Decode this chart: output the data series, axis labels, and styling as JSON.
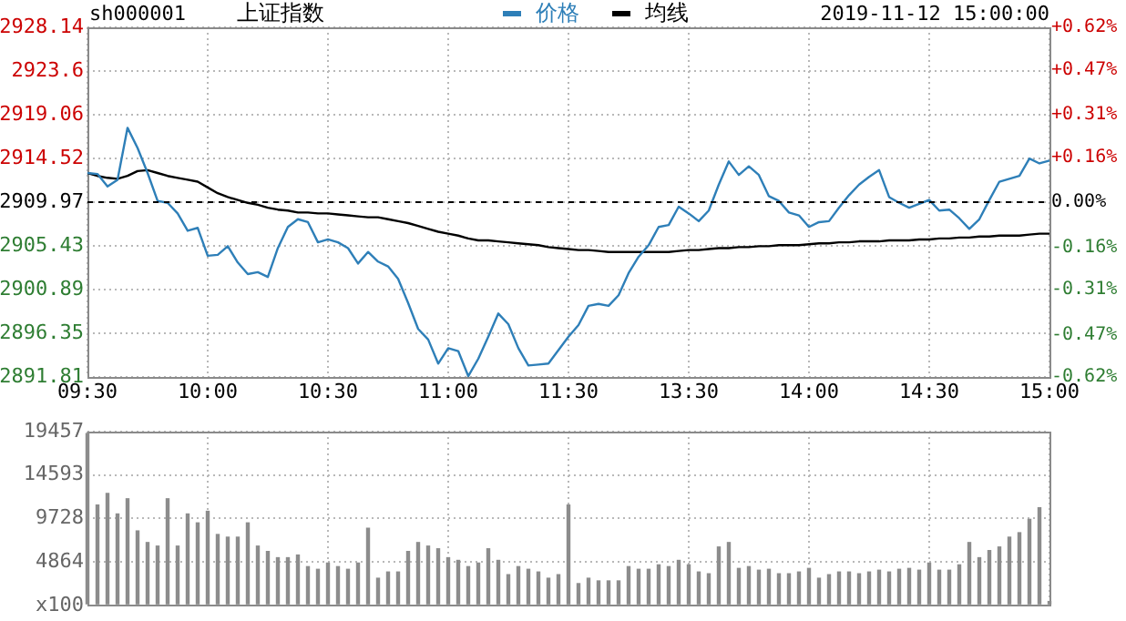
{
  "chart_data": [
    {
      "type": "line",
      "title": "上证指数",
      "subtitle": "sh000001",
      "annotations": [
        "2019-11-12 15:00:00"
      ],
      "categories": [
        "09:30",
        null,
        null,
        null,
        null,
        null,
        null,
        null,
        null,
        null,
        null,
        null,
        "10:00",
        null,
        null,
        null,
        null,
        null,
        null,
        null,
        null,
        null,
        null,
        null,
        "10:30",
        null,
        null,
        null,
        null,
        null,
        null,
        null,
        null,
        null,
        null,
        null,
        "11:00",
        null,
        null,
        null,
        null,
        null,
        null,
        null,
        null,
        null,
        null,
        null,
        "11:30",
        null,
        null,
        null,
        null,
        null,
        null,
        null,
        null,
        null,
        null,
        null,
        "13:30",
        null,
        null,
        null,
        null,
        null,
        null,
        null,
        null,
        null,
        null,
        null,
        "14:00",
        null,
        null,
        null,
        null,
        null,
        null,
        null,
        null,
        null,
        null,
        null,
        "14:30",
        null,
        null,
        null,
        null,
        null,
        null,
        null,
        null,
        null,
        null,
        null,
        "15:00"
      ],
      "series": [
        {
          "name": "价格",
          "color": "#2e7fb8",
          "values": [
            2913.0,
            2912.9,
            2911.6,
            2912.3,
            2917.7,
            2915.6,
            2913.0,
            2910.1,
            2909.9,
            2908.8,
            2907.0,
            2907.3,
            2904.4,
            2904.5,
            2905.4,
            2903.7,
            2902.5,
            2902.7,
            2902.2,
            2905.2,
            2907.4,
            2908.2,
            2907.9,
            2905.8,
            2906.1,
            2905.8,
            2905.2,
            2903.6,
            2904.8,
            2903.8,
            2903.3,
            2902.0,
            2899.5,
            2896.8,
            2895.7,
            2893.2,
            2894.8,
            2894.5,
            2891.9,
            2893.7,
            2896.0,
            2898.4,
            2897.3,
            2894.8,
            2893.0,
            2893.1,
            2893.2,
            2894.6,
            2896.0,
            2897.2,
            2899.2,
            2899.4,
            2899.2,
            2900.3,
            2902.6,
            2904.3,
            2905.5,
            2907.4,
            2907.6,
            2909.5,
            2908.8,
            2908.0,
            2909.1,
            2911.8,
            2914.2,
            2912.8,
            2913.7,
            2912.8,
            2910.6,
            2910.1,
            2908.9,
            2908.6,
            2907.4,
            2907.9,
            2908.0,
            2909.4,
            2910.7,
            2911.8,
            2912.6,
            2913.3,
            2910.5,
            2909.9,
            2909.4,
            2909.8,
            2910.2,
            2909.1,
            2909.2,
            2908.3,
            2907.2,
            2908.2,
            2910.2,
            2912.1,
            2912.4,
            2912.7,
            2914.5,
            2914.0,
            2914.3
          ]
        },
        {
          "name": "均线",
          "color": "#000000",
          "values": [
            2913.0,
            2912.7,
            2912.5,
            2912.4,
            2912.7,
            2913.2,
            2913.3,
            2913.0,
            2912.7,
            2912.5,
            2912.3,
            2912.1,
            2911.5,
            2910.9,
            2910.5,
            2910.2,
            2909.9,
            2909.7,
            2909.4,
            2909.2,
            2909.1,
            2908.9,
            2908.9,
            2908.8,
            2908.8,
            2908.7,
            2908.6,
            2908.5,
            2908.4,
            2908.4,
            2908.2,
            2908.0,
            2907.8,
            2907.5,
            2907.2,
            2906.9,
            2906.7,
            2906.5,
            2906.2,
            2906.0,
            2906.0,
            2905.9,
            2905.8,
            2905.7,
            2905.6,
            2905.5,
            2905.3,
            2905.2,
            2905.1,
            2905.0,
            2905.0,
            2904.9,
            2904.8,
            2904.8,
            2904.8,
            2904.8,
            2904.8,
            2904.8,
            2904.8,
            2904.9,
            2905.0,
            2905.0,
            2905.1,
            2905.2,
            2905.2,
            2905.3,
            2905.3,
            2905.4,
            2905.4,
            2905.5,
            2905.5,
            2905.5,
            2905.6,
            2905.7,
            2905.7,
            2905.8,
            2905.8,
            2905.9,
            2905.9,
            2905.9,
            2906.0,
            2906.0,
            2906.0,
            2906.1,
            2906.1,
            2906.2,
            2906.2,
            2906.3,
            2906.3,
            2906.4,
            2906.4,
            2906.5,
            2906.5,
            2906.5,
            2906.6,
            2906.7,
            2906.7
          ]
        }
      ],
      "ylim": [
        2891.81,
        2928.14
      ],
      "yticks": [
        2891.81,
        2896.35,
        2900.89,
        2905.43,
        2909.97,
        2914.52,
        2919.06,
        2923.6,
        2928.14
      ],
      "y2lim": [
        -0.62,
        0.62
      ],
      "y2ticks": [
        {
          "value": -0.62,
          "label": "-0.62%"
        },
        {
          "value": -0.47,
          "label": "-0.47%"
        },
        {
          "value": -0.31,
          "label": "-0.31%"
        },
        {
          "value": -0.16,
          "label": "-0.16%"
        },
        {
          "value": 0,
          "label": "0.00%"
        },
        {
          "value": 0.16,
          "label": "+0.16%"
        },
        {
          "value": 0.31,
          "label": "+0.31%"
        },
        {
          "value": 0.47,
          "label": "+0.47%"
        },
        {
          "value": 0.62,
          "label": "+0.62%"
        }
      ],
      "ref_lines": [
        {
          "axis": "y",
          "value": 2909.97,
          "color": "#000000",
          "line_style": "dashed"
        }
      ],
      "grid": true,
      "legend": "top",
      "marker": "none",
      "line_style": "solid"
    },
    {
      "type": "bar",
      "categories": [
        null,
        null,
        null,
        null,
        null,
        null,
        null,
        null,
        null,
        null,
        null,
        null,
        null,
        null,
        null,
        null,
        null,
        null,
        null,
        null,
        null,
        null,
        null,
        null,
        null,
        null,
        null,
        null,
        null,
        null,
        null,
        null,
        null,
        null,
        null,
        null,
        null,
        null,
        null,
        null,
        null,
        null,
        null,
        null,
        null,
        null,
        null,
        null,
        null,
        null,
        null,
        null,
        null,
        null,
        null,
        null,
        null,
        null,
        null,
        null,
        null,
        null,
        null,
        null,
        null,
        null,
        null,
        null,
        null,
        null,
        null,
        null,
        null,
        null,
        null,
        null,
        null,
        null,
        null,
        null,
        null,
        null,
        null,
        null,
        null,
        null,
        null,
        null,
        null,
        null,
        null,
        null,
        null,
        null,
        null,
        null,
        null
      ],
      "color": "#8c8c8c",
      "values": [
        19300,
        11300,
        12600,
        10300,
        12000,
        8400,
        7100,
        6700,
        12000,
        6700,
        10300,
        9300,
        10600,
        8000,
        7700,
        7700,
        9300,
        6700,
        6100,
        5400,
        5400,
        5700,
        4400,
        4100,
        4800,
        4400,
        4100,
        4800,
        8700,
        3100,
        3800,
        3800,
        6100,
        7100,
        6700,
        6400,
        5400,
        5100,
        4400,
        4800,
        6400,
        5100,
        3500,
        4400,
        4100,
        3800,
        3100,
        3500,
        11300,
        2500,
        3100,
        2800,
        2800,
        2800,
        4400,
        4100,
        4100,
        4600,
        4400,
        5100,
        4600,
        3800,
        3600,
        6600,
        7100,
        4200,
        4400,
        4000,
        4100,
        3600,
        3600,
        3800,
        4200,
        3100,
        3500,
        3800,
        3800,
        3600,
        3800,
        4000,
        3800,
        4100,
        4200,
        4000,
        4800,
        4000,
        4000,
        4600,
        7100,
        5400,
        6200,
        6600,
        7700,
        8200,
        9700,
        11000,
        500
      ],
      "ylim": [
        0,
        19457
      ],
      "yticks": [
        {
          "value": 0,
          "label": "x100"
        },
        4864,
        9728,
        14593,
        19457
      ],
      "grid": true,
      "tick_labels": "y"
    }
  ]
}
